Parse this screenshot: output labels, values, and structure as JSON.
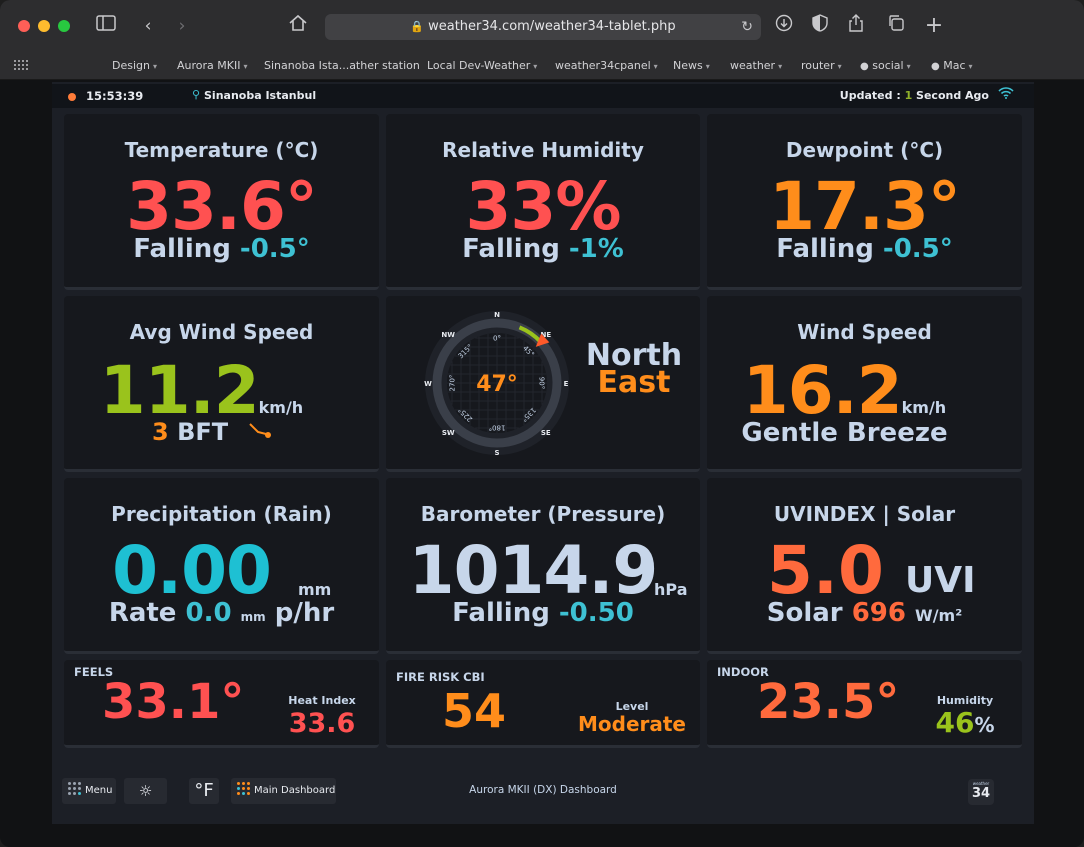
{
  "browser": {
    "url": "weather34.com/weather34-tablet.php",
    "bookmarks": [
      "Design",
      "Aurora MKII",
      "Sinanoba Ista...ather station",
      "Local Dev-Weather",
      "weather34cpanel",
      "News",
      "weather",
      "router",
      "social",
      "Mac"
    ]
  },
  "topbar": {
    "time": "15:53:39",
    "location": "Sinanoba Istanbul",
    "updated_prefix": "Updated : ",
    "updated_value": "1",
    "updated_suffix": " Second Ago"
  },
  "temperature": {
    "title": "Temperature (°C)",
    "value": "33.6°",
    "trend": "Falling",
    "change": "-0.5°"
  },
  "humidity": {
    "title": "Relative Humidity",
    "value": "33%",
    "trend": "Falling",
    "change": "-1%"
  },
  "dewpoint": {
    "title": "Dewpoint (°C)",
    "value": "17.3°",
    "trend": "Falling",
    "change": "-0.5°"
  },
  "avg_wind": {
    "title": "Avg Wind Speed",
    "value": "11.2",
    "unit": "km/h",
    "bft_num": "3",
    "bft_label": "BFT"
  },
  "compass": {
    "direction_deg": 47,
    "center": "47°",
    "dir_line1": "North",
    "dir_line2": "East",
    "cardinals": [
      "N",
      "NE",
      "E",
      "SE",
      "S",
      "SW",
      "W",
      "NW"
    ],
    "degrees": [
      "0°",
      "45°",
      "90°",
      "135°",
      "180°",
      "225°",
      "270°",
      "315°"
    ]
  },
  "wind_speed": {
    "title": "Wind Speed",
    "value": "16.2",
    "unit": "km/h",
    "description": "Gentle Breeze"
  },
  "rain": {
    "title": "Precipitation (Rain)",
    "value": "0.00",
    "unit": "mm",
    "rate_label": "Rate",
    "rate_value": "0.0",
    "rate_unit": "mm",
    "rate_suffix": "p/hr"
  },
  "barometer": {
    "title": "Barometer (Pressure)",
    "value": "1014.9",
    "unit": "hPa",
    "trend": "Falling",
    "change": "-0.50"
  },
  "uv": {
    "title": "UVINDEX | Solar",
    "value": "5.0",
    "unit": "UVI",
    "solar_label": "Solar",
    "solar_value": "696",
    "solar_unit": "W/m²"
  },
  "feels": {
    "title": "FEELS",
    "value": "33.1°",
    "hi_label": "Heat Index",
    "hi_value": "33.6"
  },
  "fire": {
    "title": "FIRE RISK CBI",
    "value": "54",
    "level_label": "Level",
    "level_value": "Moderate"
  },
  "indoor": {
    "title": "INDOOR",
    "value": "23.5°",
    "hum_label": "Humidity",
    "hum_value": "46",
    "hum_unit": "%"
  },
  "footer": {
    "menu": "Menu",
    "unit_toggle": "°F",
    "main_dashboard": "Main Dashboard",
    "title": "Aurora MKII (DX) Dashboard",
    "logo_top": "weather",
    "logo_num": "34"
  }
}
